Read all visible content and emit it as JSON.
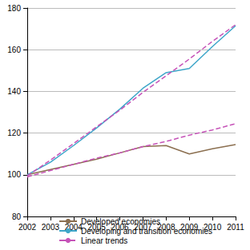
{
  "chart_data": {
    "type": "line",
    "categories": [
      "2002",
      "2003",
      "2004",
      "2005",
      "2006",
      "2007",
      "2008",
      "2009",
      "2010",
      "2011"
    ],
    "series": [
      {
        "name": "Developed economies",
        "color": "#8b6f50",
        "line_style": "solid",
        "values": [
          100,
          102.5,
          105,
          107.5,
          110.5,
          113.5,
          114,
          110,
          112.5,
          114.5
        ]
      },
      {
        "name": "Developing and transition economies",
        "color": "#3ea6c9",
        "line_style": "solid",
        "values": [
          100,
          106,
          114,
          122.5,
          131.5,
          141.5,
          149,
          151,
          161.5,
          171.5
        ]
      },
      {
        "name": "Linear trends",
        "color": "#c653b8",
        "line_style": "dashed",
        "values": [
          99.5,
          107,
          115,
          123,
          131,
          139.5,
          147.5,
          155.5,
          164,
          172
        ]
      },
      {
        "name": "Linear trends",
        "color": "#c653b8",
        "line_style": "dashed",
        "values": [
          99,
          102,
          105,
          108,
          110.5,
          113.5,
          116,
          119,
          121.5,
          124.5
        ]
      }
    ],
    "ylim": [
      80,
      180
    ],
    "yticks": [
      80,
      100,
      120,
      140,
      160,
      180
    ],
    "grid": true,
    "legend": "bottom"
  }
}
